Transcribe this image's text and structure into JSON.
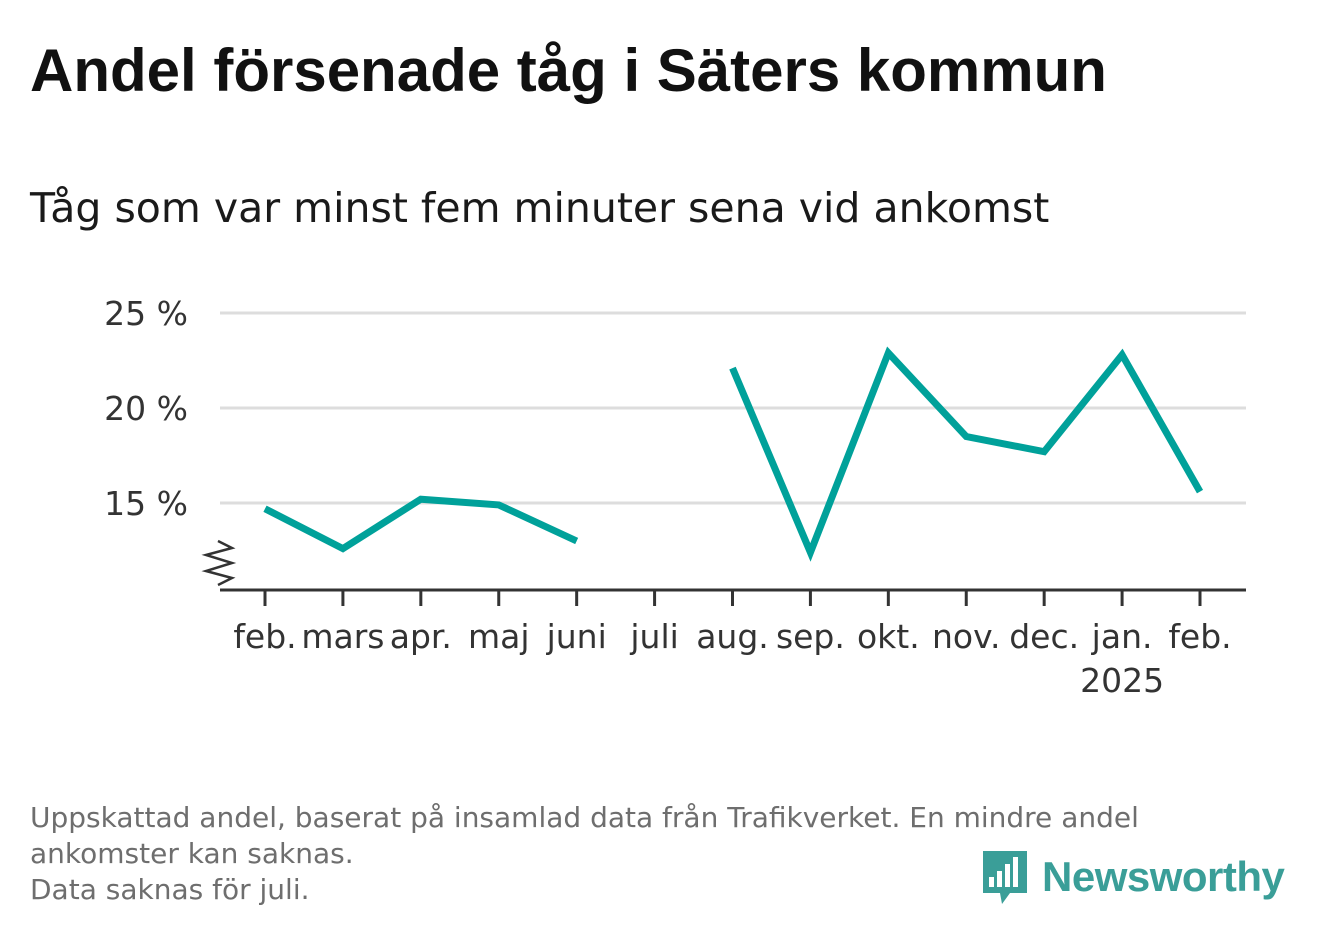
{
  "title": "Andel försenade tåg i Säters kommun",
  "subtitle": "Tåg som var minst fem minuter sena vid ankomst",
  "chart_data": {
    "type": "line",
    "categories": [
      "feb.",
      "mars",
      "apr.",
      "maj",
      "juni",
      "juli",
      "aug.",
      "sep.",
      "okt.",
      "nov.",
      "dec.",
      "jan.",
      "feb."
    ],
    "category_sublabels": [
      "",
      "",
      "",
      "",
      "",
      "",
      "",
      "",
      "",
      "",
      "",
      "2025",
      ""
    ],
    "values": [
      14.7,
      12.6,
      15.2,
      14.9,
      13.0,
      null,
      22.1,
      12.4,
      22.9,
      18.5,
      17.7,
      22.8,
      15.6
    ],
    "ylim": [
      10.5,
      25.5
    ],
    "y_ticks": [
      15,
      20,
      25
    ],
    "y_tick_labels": [
      "15 %",
      "20 %",
      "25 %"
    ],
    "y_axis_break": true,
    "grid": true,
    "line_color": "#00a19a",
    "grid_color": "#dddddd"
  },
  "footnote": {
    "lines": [
      "Uppskattad andel, baserat på insamlad data från Trafikverket. En mindre andel",
      "ankomster kan saknas.",
      "Data saknas för juli."
    ]
  },
  "logo": {
    "text": "Newsworthy",
    "icon": "bar-chart-speech-bubble-icon",
    "color": "#3a9e98"
  }
}
